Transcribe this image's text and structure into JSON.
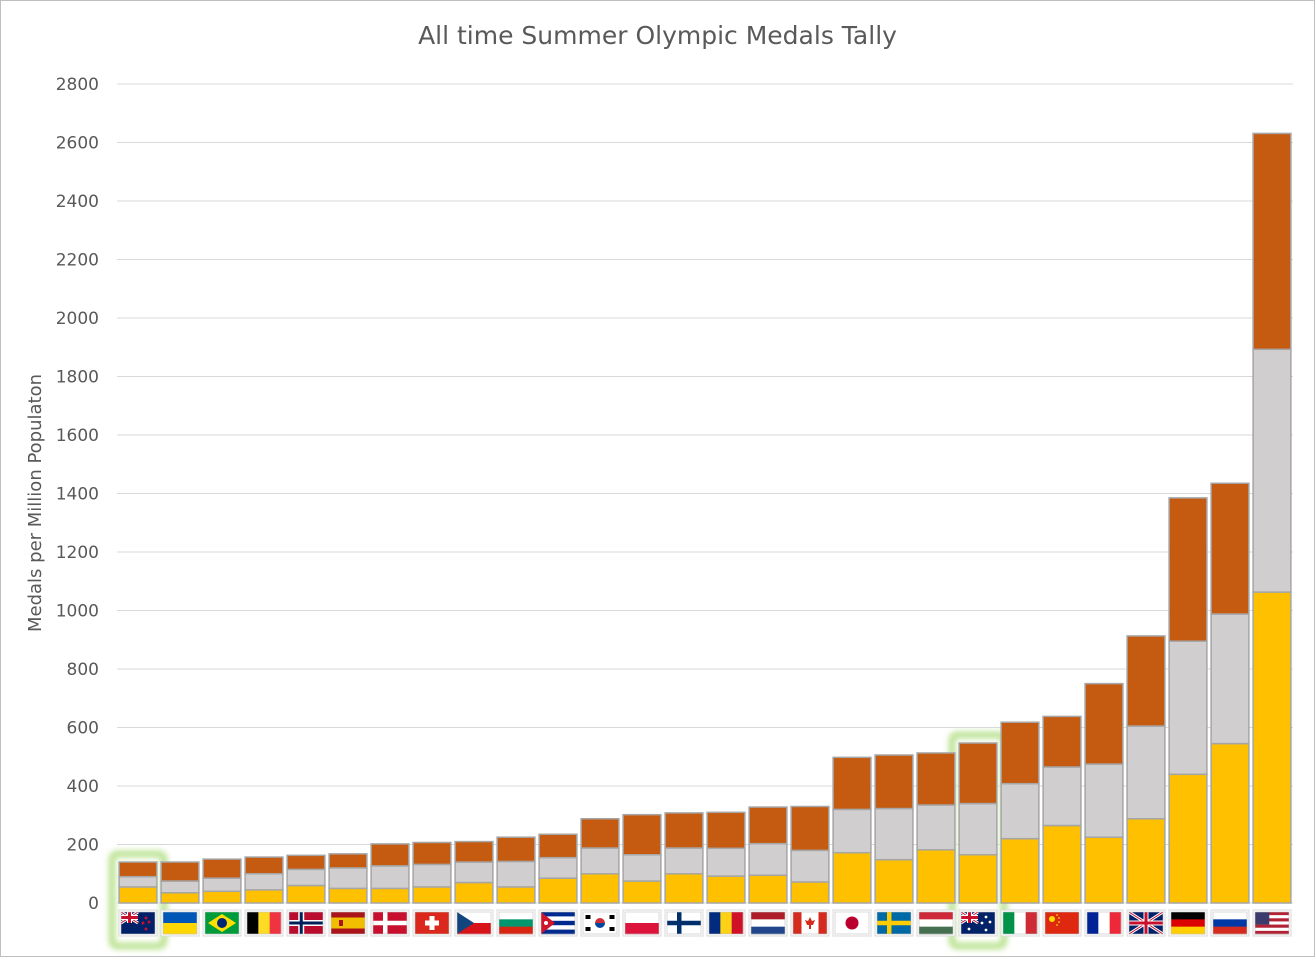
{
  "chart_data": {
    "type": "bar",
    "stacked": true,
    "title": "All time Summer Olympic Medals Tally",
    "xlabel": "",
    "ylabel": "Medals per Million Populaton",
    "ylim": [
      0,
      2800
    ],
    "yticks": [
      0,
      200,
      400,
      600,
      800,
      1000,
      1200,
      1400,
      1600,
      1800,
      2000,
      2200,
      2400,
      2600,
      2800
    ],
    "grid": true,
    "legend": "none",
    "categories": [
      "New Zealand",
      "Ukraine",
      "Brazil",
      "Belgium",
      "Norway",
      "Spain",
      "Denmark",
      "Switzerland",
      "Czech Republic",
      "Bulgaria",
      "Cuba",
      "South Korea",
      "Poland",
      "Finland",
      "Romania",
      "Netherlands",
      "Canada",
      "Japan",
      "Sweden",
      "Hungary",
      "Australia",
      "Italy",
      "China",
      "France",
      "Great Britain",
      "Germany",
      "Russia",
      "United States"
    ],
    "highlighted": [
      "New Zealand",
      "Australia"
    ],
    "series": [
      {
        "color": "#ffc000",
        "values": [
          55,
          35,
          40,
          45,
          60,
          50,
          50,
          55,
          70,
          55,
          85,
          100,
          75,
          100,
          92,
          95,
          72,
          172,
          148,
          182,
          165,
          220,
          265,
          225,
          288,
          440,
          545,
          1063
        ]
      },
      {
        "color": "#d0cece",
        "values": [
          35,
          40,
          45,
          55,
          55,
          70,
          77,
          77,
          70,
          87,
          70,
          88,
          90,
          88,
          95,
          108,
          108,
          148,
          175,
          153,
          175,
          188,
          200,
          250,
          317,
          455,
          443,
          830
        ]
      },
      {
        "color": "#c55a11",
        "values": [
          50,
          65,
          65,
          57,
          48,
          48,
          75,
          75,
          70,
          83,
          80,
          100,
          137,
          120,
          123,
          125,
          150,
          178,
          183,
          178,
          207,
          210,
          173,
          275,
          308,
          490,
          447,
          738
        ]
      }
    ]
  },
  "flags": [
    "nz",
    "ua",
    "br",
    "be",
    "no",
    "es",
    "dk",
    "ch",
    "cz",
    "bg",
    "cu",
    "kr",
    "pl",
    "fi",
    "ro",
    "nl",
    "ca",
    "jp",
    "se",
    "hu",
    "au",
    "it",
    "cn",
    "fr",
    "gb",
    "de",
    "ru",
    "us"
  ],
  "colors": {
    "grid": "#d9d9d9",
    "bar_outline": "#a6a6a6",
    "highlight": "#92d050",
    "text": "#595959"
  }
}
